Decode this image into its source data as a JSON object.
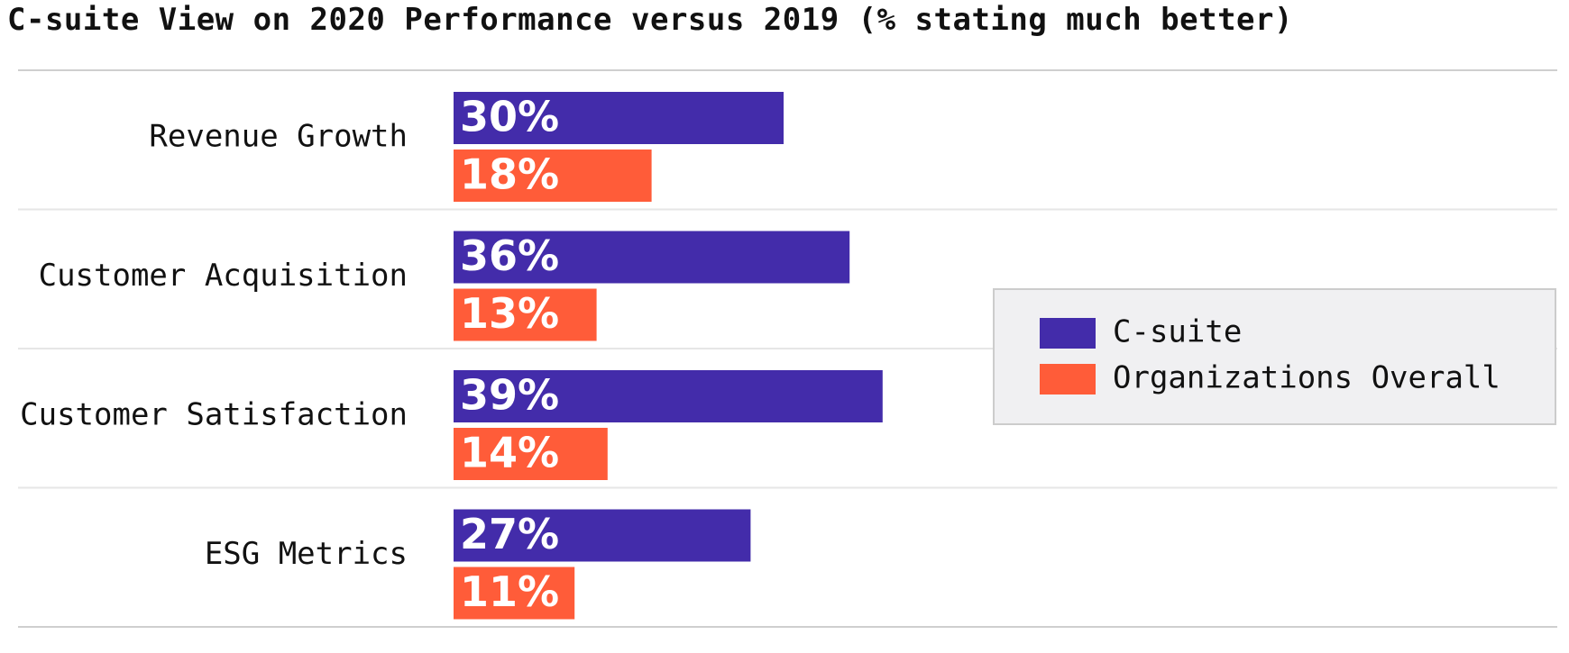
{
  "chart_data": {
    "type": "bar",
    "orientation": "horizontal",
    "title": "C-suite View on 2020 Performance versus 2019 (% stating much better)",
    "categories": [
      "Revenue Growth",
      "Customer Acquisition",
      "Customer Satisfaction",
      "ESG Metrics"
    ],
    "series": [
      {
        "name": "C-suite",
        "color": "#432caa",
        "values": [
          30,
          36,
          39,
          27
        ],
        "labels": [
          "30%",
          "36%",
          "39%",
          "27%"
        ]
      },
      {
        "name": "Organizations Overall",
        "color": "#ff5c39",
        "values": [
          18,
          13,
          14,
          11
        ],
        "labels": [
          "18%",
          "13%",
          "14%",
          "11%"
        ]
      }
    ],
    "xlim": [
      0,
      100
    ],
    "grid": "horizontal separators",
    "legend_position": "right"
  }
}
